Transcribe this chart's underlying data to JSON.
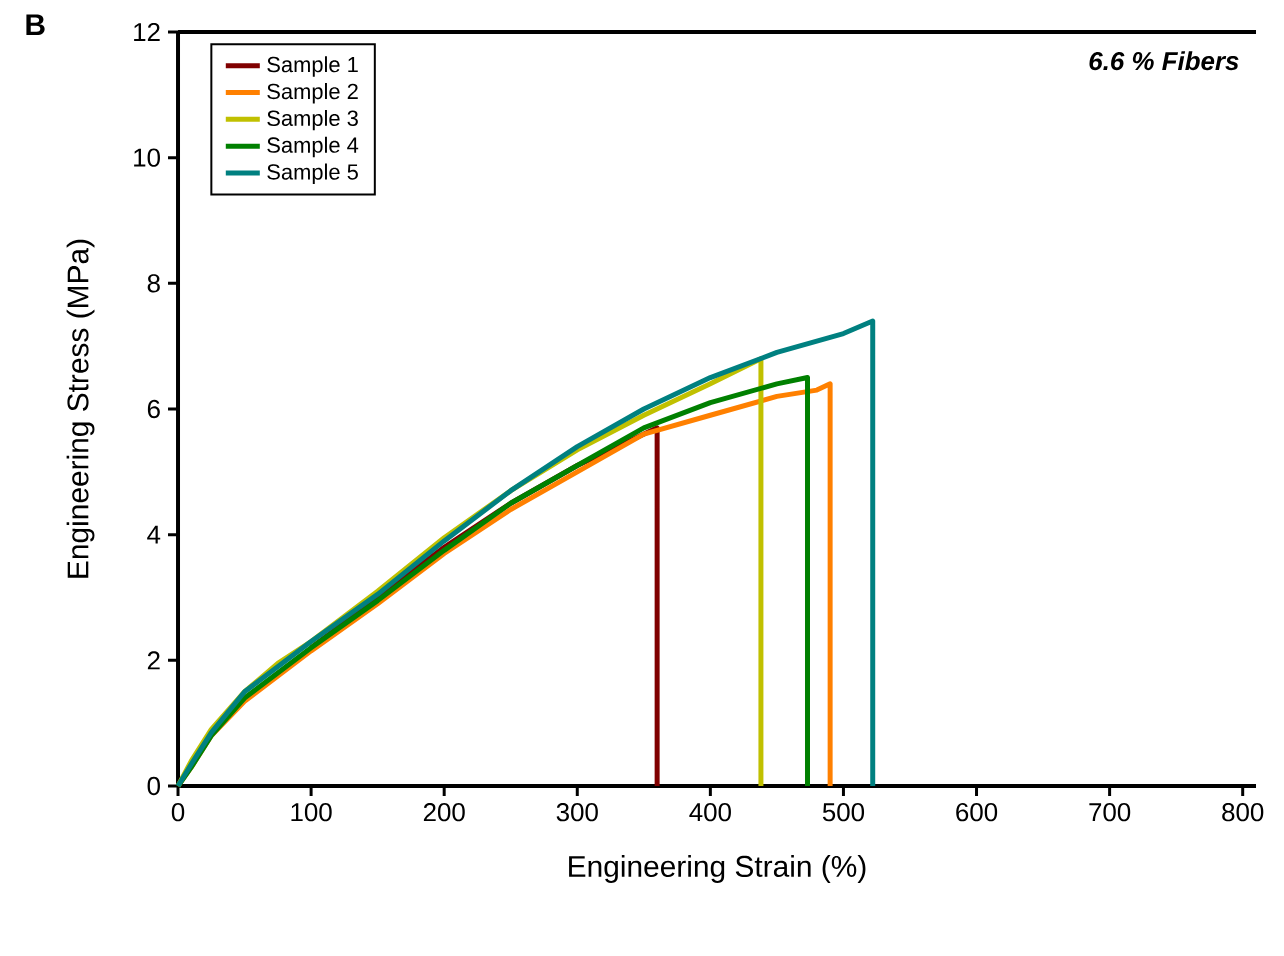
{
  "chart_data": {
    "type": "line",
    "xlabel": "Engineering Strain (%)",
    "ylabel": "Engineering Stress (MPa)",
    "annotations": [
      "B",
      "6.6 % Fibers"
    ],
    "xlim": [
      0,
      810
    ],
    "ylim": [
      0,
      12
    ],
    "xticks": [
      0,
      100,
      200,
      300,
      400,
      500,
      600,
      700,
      800
    ],
    "yticks": [
      0,
      2,
      4,
      6,
      8,
      10,
      12
    ],
    "grid": false,
    "legend": "top left",
    "marker": "none",
    "line_style": "solid",
    "series": [
      {
        "name": "Sample 1",
        "color": "#800000",
        "x": [
          100,
          150,
          200,
          250,
          300,
          340,
          360,
          360
        ],
        "values": [
          2.2,
          3.0,
          3.8,
          4.5,
          5.1,
          5.5,
          5.7,
          0
        ]
      },
      {
        "name": "Sample 2",
        "color": "#ff8000",
        "x": [
          0,
          10,
          25,
          50,
          75,
          100,
          150,
          200,
          250,
          300,
          350,
          400,
          450,
          480,
          490,
          490
        ],
        "values": [
          0,
          0.3,
          0.8,
          1.35,
          1.75,
          2.15,
          2.9,
          3.7,
          4.4,
          5.0,
          5.6,
          5.9,
          6.2,
          6.3,
          6.4,
          0
        ]
      },
      {
        "name": "Sample 3",
        "color": "#c0c000",
        "x": [
          0,
          10,
          25,
          50,
          75,
          100,
          150,
          200,
          250,
          300,
          350,
          400,
          438,
          438
        ],
        "values": [
          0,
          0.4,
          0.9,
          1.5,
          1.95,
          2.3,
          3.1,
          3.95,
          4.7,
          5.35,
          5.9,
          6.4,
          6.8,
          0
        ]
      },
      {
        "name": "Sample 4",
        "color": "#008000",
        "x": [
          0,
          10,
          25,
          50,
          100,
          150,
          200,
          250,
          300,
          350,
          400,
          450,
          473,
          473
        ],
        "values": [
          0,
          0.3,
          0.8,
          1.4,
          2.2,
          2.95,
          3.75,
          4.5,
          5.1,
          5.7,
          6.1,
          6.4,
          6.5,
          0
        ]
      },
      {
        "name": "Sample 5",
        "color": "#008080",
        "x": [
          0,
          10,
          25,
          50,
          100,
          150,
          200,
          250,
          300,
          350,
          400,
          450,
          500,
          522,
          522
        ],
        "values": [
          0,
          0.35,
          0.85,
          1.5,
          2.3,
          3.05,
          3.9,
          4.7,
          5.4,
          6.0,
          6.5,
          6.9,
          7.2,
          7.4,
          0
        ]
      }
    ]
  }
}
